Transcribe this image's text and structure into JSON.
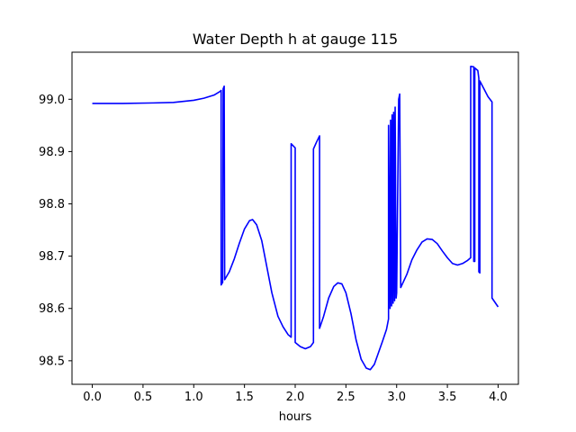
{
  "chart_data": {
    "type": "line",
    "title": "Water Depth h at gauge 115",
    "xlabel": "hours",
    "ylabel": "",
    "xlim": [
      -0.2,
      4.2
    ],
    "ylim": [
      98.455,
      99.09
    ],
    "xticks": [
      0,
      0.5,
      1,
      1.5,
      2,
      2.5,
      3,
      3.5,
      4
    ],
    "xtick_labels": [
      "0.0",
      "0.5",
      "1.0",
      "1.5",
      "2.0",
      "2.5",
      "3.0",
      "3.5",
      "4.0"
    ],
    "yticks": [
      98.5,
      98.6,
      98.7,
      98.8,
      98.9,
      99.0
    ],
    "ytick_labels": [
      "98.5",
      "98.6",
      "98.7",
      "98.8",
      "98.9",
      "99.0"
    ],
    "grid": false,
    "legend": "none",
    "series": [
      {
        "color": "#0000ff",
        "points": [
          [
            0.0,
            98.992
          ],
          [
            0.3,
            98.992
          ],
          [
            0.6,
            98.993
          ],
          [
            0.8,
            98.994
          ],
          [
            1.0,
            98.998
          ],
          [
            1.1,
            99.002
          ],
          [
            1.2,
            99.008
          ],
          [
            1.26,
            99.015
          ],
          [
            1.27,
            99.017
          ],
          [
            1.27,
            98.645
          ],
          [
            1.285,
            98.65
          ],
          [
            1.29,
            99.02
          ],
          [
            1.3,
            99.025
          ],
          [
            1.305,
            98.655
          ],
          [
            1.35,
            98.67
          ],
          [
            1.4,
            98.695
          ],
          [
            1.45,
            98.725
          ],
          [
            1.5,
            98.752
          ],
          [
            1.55,
            98.768
          ],
          [
            1.58,
            98.77
          ],
          [
            1.62,
            98.76
          ],
          [
            1.67,
            98.73
          ],
          [
            1.72,
            98.68
          ],
          [
            1.77,
            98.63
          ],
          [
            1.83,
            98.585
          ],
          [
            1.88,
            98.565
          ],
          [
            1.93,
            98.55
          ],
          [
            1.96,
            98.545
          ],
          [
            1.96,
            98.915
          ],
          [
            2.0,
            98.907
          ],
          [
            2.0,
            98.535
          ],
          [
            2.05,
            98.527
          ],
          [
            2.1,
            98.523
          ],
          [
            2.15,
            98.527
          ],
          [
            2.18,
            98.535
          ],
          [
            2.18,
            98.905
          ],
          [
            2.21,
            98.918
          ],
          [
            2.24,
            98.93
          ],
          [
            2.24,
            98.562
          ],
          [
            2.28,
            98.585
          ],
          [
            2.33,
            98.62
          ],
          [
            2.38,
            98.642
          ],
          [
            2.42,
            98.649
          ],
          [
            2.46,
            98.647
          ],
          [
            2.5,
            98.63
          ],
          [
            2.55,
            98.59
          ],
          [
            2.6,
            98.54
          ],
          [
            2.65,
            98.503
          ],
          [
            2.7,
            98.486
          ],
          [
            2.74,
            98.483
          ],
          [
            2.78,
            98.493
          ],
          [
            2.82,
            98.515
          ],
          [
            2.86,
            98.537
          ],
          [
            2.9,
            98.56
          ],
          [
            2.92,
            98.58
          ],
          [
            2.92,
            98.95
          ],
          [
            2.935,
            98.6
          ],
          [
            2.94,
            98.96
          ],
          [
            2.95,
            98.605
          ],
          [
            2.955,
            98.97
          ],
          [
            2.965,
            98.61
          ],
          [
            2.97,
            98.975
          ],
          [
            2.98,
            98.615
          ],
          [
            2.985,
            98.985
          ],
          [
            2.995,
            98.62
          ],
          [
            3.0,
            98.63
          ],
          [
            3.02,
            99.0
          ],
          [
            3.03,
            99.01
          ],
          [
            3.04,
            98.64
          ],
          [
            3.1,
            98.665
          ],
          [
            3.15,
            98.693
          ],
          [
            3.2,
            98.712
          ],
          [
            3.25,
            98.727
          ],
          [
            3.3,
            98.733
          ],
          [
            3.35,
            98.732
          ],
          [
            3.4,
            98.724
          ],
          [
            3.45,
            98.71
          ],
          [
            3.5,
            98.697
          ],
          [
            3.55,
            98.686
          ],
          [
            3.6,
            98.683
          ],
          [
            3.65,
            98.686
          ],
          [
            3.7,
            98.692
          ],
          [
            3.73,
            98.697
          ],
          [
            3.73,
            99.063
          ],
          [
            3.76,
            99.062
          ],
          [
            3.76,
            98.69
          ],
          [
            3.77,
            98.69
          ],
          [
            3.77,
            99.06
          ],
          [
            3.8,
            99.055
          ],
          [
            3.81,
            99.04
          ],
          [
            3.81,
            98.67
          ],
          [
            3.82,
            98.668
          ],
          [
            3.82,
            99.035
          ],
          [
            3.86,
            99.02
          ],
          [
            3.9,
            99.005
          ],
          [
            3.94,
            98.995
          ],
          [
            3.94,
            98.62
          ],
          [
            4.0,
            98.603
          ]
        ]
      }
    ]
  }
}
